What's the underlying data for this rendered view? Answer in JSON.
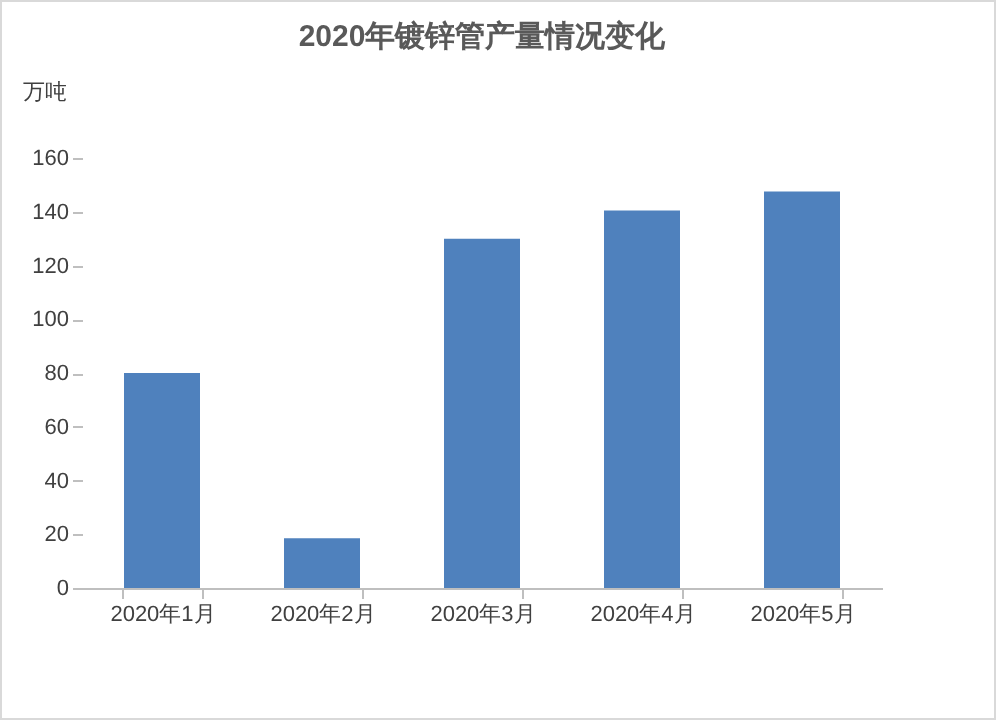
{
  "chart_data": {
    "type": "bar",
    "title": "2020年镀锌管产量情况变化",
    "ylabel": "万吨",
    "categories": [
      "2020年1月",
      "2020年2月",
      "2020年3月",
      "2020年4月",
      "2020年5月"
    ],
    "values": [
      80,
      18.5,
      130,
      140.5,
      147.5
    ],
    "color": "#4f81bd",
    "ylim": [
      0,
      160
    ],
    "yticks": [
      0,
      20,
      40,
      60,
      80,
      100,
      120,
      140,
      160
    ],
    "grid": false
  }
}
